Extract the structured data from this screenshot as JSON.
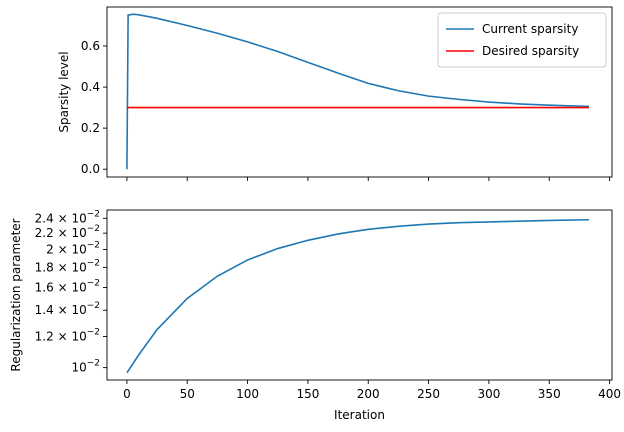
{
  "chart_data": [
    {
      "type": "line",
      "ylabel": "Sparsity level",
      "xlim": [
        -16.5,
        402
      ],
      "ylim": [
        -0.038,
        0.79
      ],
      "grid": false,
      "legend_placement": "upper-right",
      "x_ticks": [
        0,
        50,
        100,
        150,
        200,
        250,
        300,
        350,
        400
      ],
      "x_ticklabels_shown": false,
      "y_ticks": [
        {
          "value": 0.0,
          "label": "0.0"
        },
        {
          "value": 0.2,
          "label": "0.2"
        },
        {
          "value": 0.4,
          "label": "0.4"
        },
        {
          "value": 0.6,
          "label": "0.6"
        }
      ],
      "series": [
        {
          "name": "Current sparsity",
          "color": "#1f77b4",
          "points": [
            [
              0,
              0.0
            ],
            [
              1,
              0.75
            ],
            [
              5,
              0.755
            ],
            [
              10,
              0.752
            ],
            [
              25,
              0.735
            ],
            [
              50,
              0.7
            ],
            [
              75,
              0.662
            ],
            [
              100,
              0.62
            ],
            [
              125,
              0.573
            ],
            [
              150,
              0.52
            ],
            [
              175,
              0.468
            ],
            [
              200,
              0.418
            ],
            [
              225,
              0.382
            ],
            [
              250,
              0.356
            ],
            [
              275,
              0.34
            ],
            [
              300,
              0.327
            ],
            [
              325,
              0.318
            ],
            [
              350,
              0.312
            ],
            [
              383,
              0.306
            ]
          ]
        },
        {
          "name": "Desired sparsity",
          "color": "#ff0000",
          "points": [
            [
              0,
              0.3
            ],
            [
              383,
              0.3
            ]
          ]
        }
      ]
    },
    {
      "type": "line",
      "xlabel": "Iteration",
      "ylabel": "Regularization parameter",
      "yscale": "log",
      "xlim": [
        -16.5,
        402
      ],
      "ylim": [
        0.0093,
        0.0252
      ],
      "grid": false,
      "x_ticks": [
        {
          "value": 0,
          "label": "0"
        },
        {
          "value": 50,
          "label": "50"
        },
        {
          "value": 100,
          "label": "100"
        },
        {
          "value": 150,
          "label": "150"
        },
        {
          "value": 200,
          "label": "200"
        },
        {
          "value": 250,
          "label": "250"
        },
        {
          "value": 300,
          "label": "300"
        },
        {
          "value": 350,
          "label": "350"
        },
        {
          "value": 400,
          "label": "400"
        }
      ],
      "y_ticks": [
        {
          "value": 0.01,
          "mantissa": "",
          "exponent": "−2"
        },
        {
          "value": 0.012,
          "mantissa": "1.2",
          "exponent": "−2"
        },
        {
          "value": 0.014,
          "mantissa": "1.4",
          "exponent": "−2"
        },
        {
          "value": 0.016,
          "mantissa": "1.6",
          "exponent": "−2"
        },
        {
          "value": 0.018,
          "mantissa": "1.8",
          "exponent": "−2"
        },
        {
          "value": 0.02,
          "mantissa": "2",
          "exponent": "−2"
        },
        {
          "value": 0.022,
          "mantissa": "2.2",
          "exponent": "−2"
        },
        {
          "value": 0.024,
          "mantissa": "2.4",
          "exponent": "−2"
        }
      ],
      "series": [
        {
          "color": "#1f77b4",
          "points": [
            [
              0,
              0.0097
            ],
            [
              10,
              0.0108
            ],
            [
              25,
              0.0125
            ],
            [
              50,
              0.015
            ],
            [
              75,
              0.0171
            ],
            [
              100,
              0.0188
            ],
            [
              125,
              0.0201
            ],
            [
              150,
              0.0211
            ],
            [
              175,
              0.0219
            ],
            [
              200,
              0.0225
            ],
            [
              225,
              0.0229
            ],
            [
              250,
              0.0232
            ],
            [
              275,
              0.0234
            ],
            [
              300,
              0.0235
            ],
            [
              325,
              0.0236
            ],
            [
              350,
              0.0237
            ],
            [
              383,
              0.0238
            ]
          ]
        }
      ]
    }
  ]
}
